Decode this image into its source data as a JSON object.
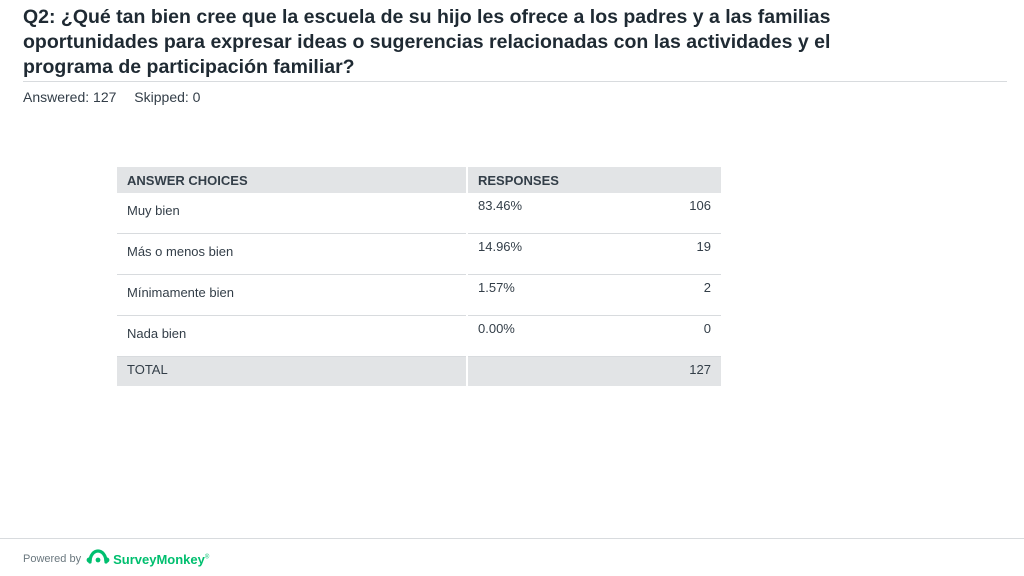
{
  "question": {
    "title": "Q2: ¿Qué tan bien cree que la escuela de su hijo les ofrece a los padres y a las familias oportunidades para expresar ideas o sugerencias relacionadas con las actividades y el programa de participación familiar?",
    "answered_label": "Answered: 127",
    "skipped_label": "Skipped: 0"
  },
  "table": {
    "headers": [
      "ANSWER CHOICES",
      "RESPONSES"
    ],
    "rows": [
      {
        "choice": "Muy bien",
        "percent": "83.46%",
        "count": "106"
      },
      {
        "choice": "Más o menos bien",
        "percent": "14.96%",
        "count": "19"
      },
      {
        "choice": "Mínimamente bien",
        "percent": "1.57%",
        "count": "2"
      },
      {
        "choice": "Nada bien",
        "percent": "0.00%",
        "count": "0"
      }
    ],
    "total_label": "TOTAL",
    "total_count": "127"
  },
  "footer": {
    "powered_by": "Powered by",
    "brand": "SurveyMonkey",
    "brand_mark": "®",
    "brand_color": "#00bf6f",
    "logo_icon": "surveymonkey-logo-icon"
  }
}
